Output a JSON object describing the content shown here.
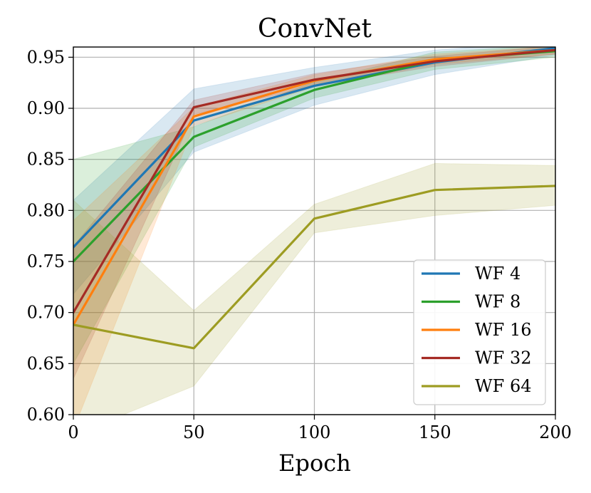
{
  "chart_data": {
    "type": "line",
    "title": "ConvNet",
    "xlabel": "Epoch",
    "ylabel": "",
    "xlim": [
      0,
      200
    ],
    "ylim": [
      0.6,
      0.96
    ],
    "xticks": [
      0,
      50,
      100,
      150,
      200
    ],
    "xtick_labels": [
      "0",
      "50",
      "100",
      "150",
      "200"
    ],
    "yticks": [
      0.6,
      0.65,
      0.7,
      0.75,
      0.8,
      0.85,
      0.9,
      0.95
    ],
    "ytick_labels": [
      "0.60",
      "0.65",
      "0.70",
      "0.75",
      "0.80",
      "0.85",
      "0.90",
      "0.95"
    ],
    "grid": true,
    "legend_position": "lower-right",
    "x": [
      0,
      50,
      100,
      150,
      200
    ],
    "series": [
      {
        "name": "WF 4",
        "color": "#1f77b4",
        "values": [
          0.764,
          0.888,
          0.922,
          0.945,
          0.959
        ],
        "lower": [
          0.718,
          0.857,
          0.903,
          0.933,
          0.952
        ],
        "upper": [
          0.81,
          0.919,
          0.94,
          0.957,
          0.966
        ]
      },
      {
        "name": "WF 8",
        "color": "#2ca02c",
        "values": [
          0.75,
          0.872,
          0.918,
          0.947,
          0.956
        ],
        "lower": [
          0.65,
          0.862,
          0.91,
          0.938,
          0.95
        ],
        "upper": [
          0.85,
          0.882,
          0.926,
          0.955,
          0.962
        ]
      },
      {
        "name": "WF 16",
        "color": "#ff7f0e",
        "values": [
          0.688,
          0.892,
          0.927,
          0.948,
          0.957
        ],
        "lower": [
          0.585,
          0.883,
          0.921,
          0.943,
          0.953
        ],
        "upper": [
          0.79,
          0.901,
          0.933,
          0.953,
          0.961
        ]
      },
      {
        "name": "WF 32",
        "color": "#a52b24",
        "values": [
          0.7,
          0.901,
          0.928,
          0.946,
          0.957
        ],
        "lower": [
          0.635,
          0.894,
          0.922,
          0.941,
          0.953
        ],
        "upper": [
          0.765,
          0.908,
          0.934,
          0.951,
          0.961
        ]
      },
      {
        "name": "WF 64",
        "color": "#9d9c22",
        "values": [
          0.688,
          0.665,
          0.792,
          0.82,
          0.824
        ],
        "lower": [
          0.58,
          0.628,
          0.778,
          0.795,
          0.805
        ],
        "upper": [
          0.81,
          0.702,
          0.806,
          0.846,
          0.844
        ]
      }
    ]
  }
}
